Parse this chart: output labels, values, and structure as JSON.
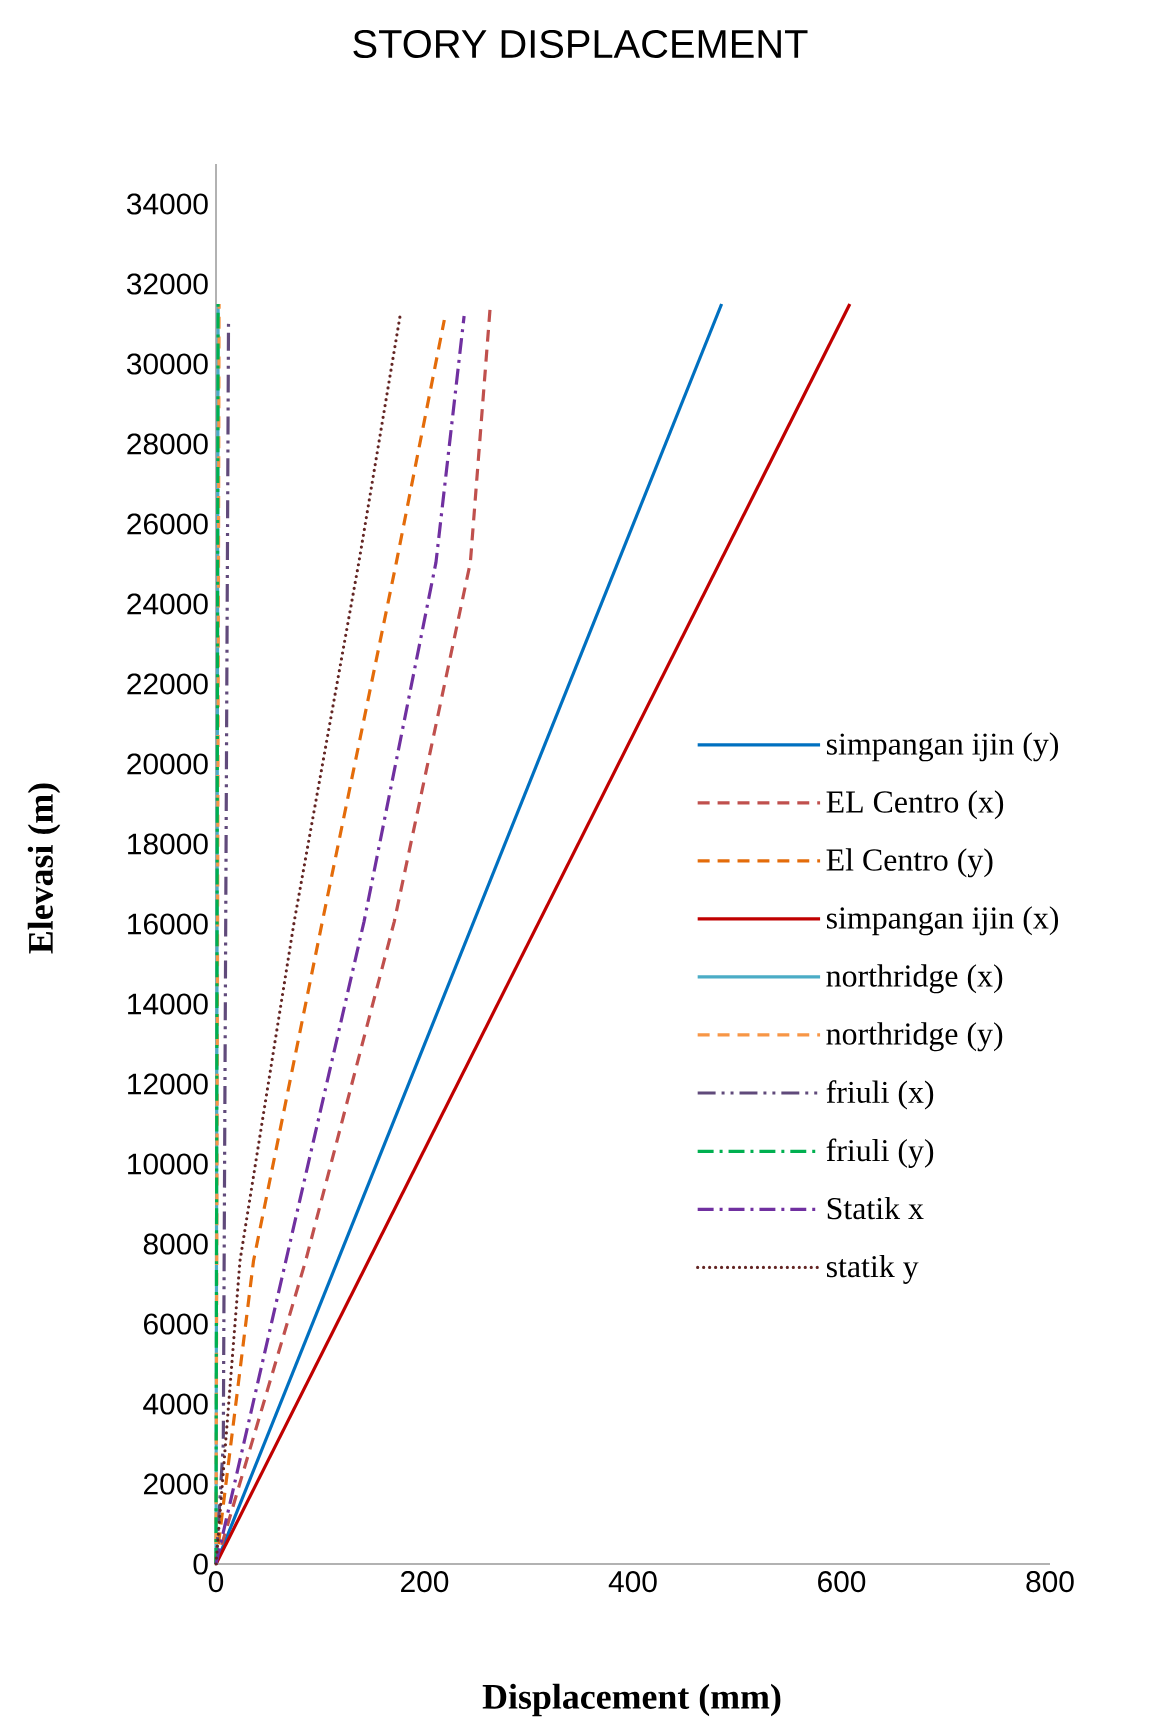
{
  "chart_data": {
    "type": "line",
    "title": "STORY DISPLACEMENT",
    "xlabel": "Displacement (mm)",
    "ylabel": "Elevasi (m)",
    "xlim": [
      0,
      800
    ],
    "xticks": [
      0,
      200,
      400,
      600,
      800
    ],
    "ylim": [
      0,
      35000
    ],
    "yticks": [
      0,
      2000,
      4000,
      6000,
      8000,
      10000,
      12000,
      14000,
      16000,
      18000,
      20000,
      22000,
      24000,
      26000,
      28000,
      30000,
      32000,
      34000
    ],
    "grid": false,
    "legend": "right",
    "marker": "none",
    "series": [
      {
        "name": "simpangan ijin (y)",
        "color": "#0070c0",
        "line_style": "solid",
        "x": [
          0,
          485
        ],
        "values": [
          0,
          31500
        ]
      },
      {
        "name": "EL Centro (x)",
        "color": "#c0504d",
        "line_style": "dashed",
        "x": [
          0,
          86,
          171,
          244,
          263
        ],
        "values": [
          0,
          7580,
          16060,
          25040,
          31420
        ]
      },
      {
        "name": "El Centro (y)",
        "color": "#e46c0a",
        "line_style": "dashed",
        "x": [
          0,
          36,
          102,
          173,
          219
        ],
        "values": [
          0,
          7580,
          16060,
          25040,
          31100
        ]
      },
      {
        "name": "simpangan ijin (x)",
        "color": "#c00000",
        "line_style": "solid",
        "x": [
          0,
          608
        ],
        "values": [
          0,
          31500
        ]
      },
      {
        "name": "northridge (x)",
        "color": "#4bacc6",
        "line_style": "solid",
        "x": [
          0,
          2
        ],
        "values": [
          0,
          31500
        ]
      },
      {
        "name": "northridge (y)",
        "color": "#f79646",
        "line_style": "dashed",
        "x": [
          0,
          3
        ],
        "values": [
          0,
          31500
        ]
      },
      {
        "name": "friuli (x)",
        "color": "#604a7b",
        "line_style": "dashdotdotted",
        "x": [
          0,
          7,
          12
        ],
        "values": [
          0,
          3000,
          31070
        ]
      },
      {
        "name": "friuli (y)",
        "color": "#00b050",
        "line_style": "dashdotted",
        "x": [
          0,
          2
        ],
        "values": [
          0,
          31500
        ]
      },
      {
        "name": "Statik x",
        "color": "#7030a0",
        "line_style": "dashdotted",
        "x": [
          0,
          67,
          142,
          211,
          238
        ],
        "values": [
          0,
          7580,
          16060,
          25040,
          31200
        ]
      },
      {
        "name": "statik y",
        "color": "#632523",
        "line_style": "dotted",
        "x": [
          0,
          23,
          75,
          137,
          177
        ],
        "values": [
          0,
          7580,
          16060,
          25040,
          31270
        ]
      }
    ]
  }
}
